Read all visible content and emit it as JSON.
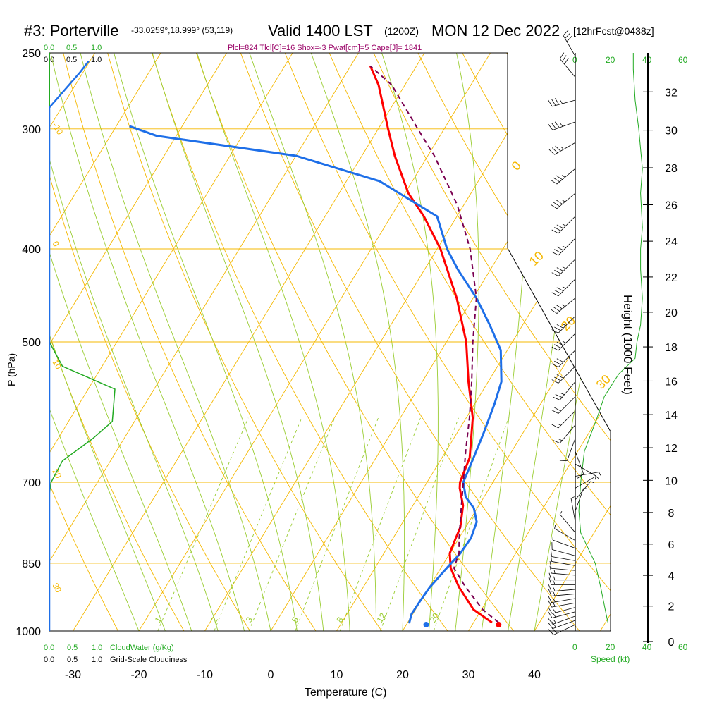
{
  "header": {
    "station": "#3: Porterville",
    "coords": "-33.0259°,18.999° (53,119)",
    "valid": "Valid 1400 LST",
    "utc": "(1200Z)",
    "date": "MON 12 Dec 2022",
    "forecast": "[12hrFcst@0438z]",
    "params": "Plcl=824 Tlcl[C]=16 Shox=-3 Pwat[cm]=5 Cape[J]= 1841"
  },
  "axes": {
    "ylabel": "P (hPa)",
    "xlabel": "Temperature (C)",
    "height_label": "Height (1000 Feet)",
    "speed_label": "Speed (kt)"
  },
  "legend": {
    "cloudwater_label": "CloudWater (g/Kg)",
    "cloudiness_label": "Grid-Scale Cloudiness",
    "scale_top_green": [
      "0.0",
      "0.5",
      "1.0"
    ],
    "scale_top_black": [
      "0.0",
      "0.5",
      "1.0"
    ],
    "scale_bottom_green": [
      "0.0",
      "0.5",
      "1.0"
    ],
    "scale_bottom_black": [
      "0.0",
      "0.5",
      "1.0"
    ]
  },
  "speed_scale": {
    "inner": [
      "0",
      "20",
      "40"
    ],
    "outer": [
      "60"
    ]
  },
  "colors": {
    "isotherm": "#f5b800",
    "dry_adiabat": "#f5b800",
    "moist_adiabat": "#9acd32",
    "mixing_ratio": "#9acd32",
    "temperature": "#ff0000",
    "dewpoint": "#1e6fe8",
    "parcel": "#7a0050",
    "cloudwater": "#22aa22",
    "cloudiness": "#1e6fe8",
    "wind": "#000000",
    "green_text": "#22aa22",
    "param_text": "#990066"
  },
  "chart_data": {
    "type": "line",
    "title": "Valid 1400 LST (1200Z) MON 12 Dec 2022",
    "xlabel": "Temperature (C)",
    "ylabel": "P (hPa)",
    "y_log_scale": true,
    "skewed_x": true,
    "xlim": [
      -35,
      45
    ],
    "ylim": [
      1000,
      250
    ],
    "pressure_ticks": [
      250,
      300,
      400,
      500,
      700,
      850,
      1000
    ],
    "pressure_tick_labels": [
      "250",
      "300",
      "400",
      "500",
      "700",
      "850",
      "1000"
    ],
    "temp_ticks": [
      -30,
      -20,
      -10,
      0,
      10,
      20,
      30,
      40
    ],
    "temp_tick_labels": [
      "-30",
      "-20",
      "-10",
      "0",
      "10",
      "20",
      "30",
      "40"
    ],
    "height_ticks_kft": [
      0,
      2,
      4,
      6,
      8,
      10,
      12,
      14,
      16,
      18,
      20,
      22,
      24,
      26,
      28,
      30,
      32
    ],
    "height_tick_labels": [
      "0",
      "2",
      "4",
      "6",
      "8",
      "10",
      "12",
      "14",
      "16",
      "18",
      "20",
      "22",
      "24",
      "26",
      "28",
      "30",
      "32"
    ],
    "mixing_ratio_labels": [
      "1",
      "2",
      "3",
      "5",
      "8",
      "12",
      "20"
    ],
    "mixing_ratio_values": [
      1,
      2,
      3,
      5,
      8,
      12,
      20
    ],
    "moist_adiabat_labels": [
      "0",
      "10",
      "20",
      "30"
    ],
    "dry_adiabat_labels": [
      "-10",
      "0",
      "10",
      "20",
      "30"
    ],
    "series": [
      {
        "name": "Temperature",
        "points": [
          [
            980,
            32.8
          ],
          [
            950,
            28.8
          ],
          [
            900,
            24.5
          ],
          [
            860,
            21.5
          ],
          [
            830,
            20.0
          ],
          [
            800,
            19.5
          ],
          [
            780,
            19.2
          ],
          [
            740,
            17.6
          ],
          [
            710,
            15.5
          ],
          [
            700,
            15.0
          ],
          [
            660,
            14.2
          ],
          [
            600,
            11.0
          ],
          [
            550,
            7.0
          ],
          [
            500,
            3.0
          ],
          [
            450,
            -2.5
          ],
          [
            400,
            -9.5
          ],
          [
            370,
            -15.0
          ],
          [
            350,
            -19.5
          ],
          [
            320,
            -25.0
          ],
          [
            300,
            -28.5
          ],
          [
            270,
            -34.0
          ],
          [
            258,
            -37.0
          ]
        ]
      },
      {
        "name": "Dewpoint",
        "points": [
          [
            982,
            20.3
          ],
          [
            960,
            19.8
          ],
          [
            930,
            19.9
          ],
          [
            900,
            20.1
          ],
          [
            860,
            20.9
          ],
          [
            830,
            21.6
          ],
          [
            800,
            21.8
          ],
          [
            770,
            21.2
          ],
          [
            745,
            19.5
          ],
          [
            725,
            17.2
          ],
          [
            700,
            15.5
          ],
          [
            660,
            14.8
          ],
          [
            620,
            14.0
          ],
          [
            580,
            13.0
          ],
          [
            550,
            12.0
          ],
          [
            510,
            9.0
          ],
          [
            480,
            5.0
          ],
          [
            450,
            0.5
          ],
          [
            420,
            -5.0
          ],
          [
            400,
            -8.5
          ],
          [
            370,
            -13.0
          ],
          [
            340,
            -25.0
          ],
          [
            320,
            -40.0
          ],
          [
            305,
            -63.0
          ],
          [
            298,
            -68.0
          ]
        ]
      },
      {
        "name": "Parcel",
        "points": [
          [
            980,
            33.8
          ],
          [
            950,
            30.2
          ],
          [
            900,
            25.5
          ],
          [
            860,
            22.0
          ],
          [
            830,
            21.4
          ],
          [
            800,
            20.0
          ],
          [
            750,
            17.8
          ],
          [
            700,
            15.5
          ],
          [
            650,
            13.0
          ],
          [
            600,
            10.5
          ],
          [
            550,
            7.5
          ],
          [
            500,
            4.0
          ],
          [
            450,
            0.5
          ],
          [
            400,
            -5.0
          ],
          [
            360,
            -11.0
          ],
          [
            320,
            -19.0
          ],
          [
            300,
            -24.0
          ],
          [
            270,
            -32.0
          ],
          [
            258,
            -37.0
          ]
        ]
      }
    ],
    "surface_temperature": 34.0,
    "surface_dewpoint": 23.0,
    "cloudwater_profile": [
      [
        1000,
        0.0
      ],
      [
        720,
        0.0
      ],
      [
        700,
        0.02
      ],
      [
        665,
        0.15
      ],
      [
        630,
        0.5
      ],
      [
        605,
        0.72
      ],
      [
        560,
        0.75
      ],
      [
        530,
        0.15
      ],
      [
        500,
        0.0
      ],
      [
        250,
        0.0
      ]
    ],
    "cloudiness_profile": [
      [
        1000,
        0.0
      ],
      [
        298,
        0.0
      ],
      [
        285,
        0.0
      ],
      [
        262,
        0.7
      ],
      [
        255,
        0.9
      ]
    ],
    "wind_speed_profile_kt": [
      [
        980,
        18
      ],
      [
        960,
        17
      ],
      [
        900,
        14
      ],
      [
        850,
        11
      ],
      [
        790,
        3
      ],
      [
        750,
        2
      ],
      [
        700,
        3
      ],
      [
        650,
        5
      ],
      [
        600,
        12
      ],
      [
        570,
        16
      ],
      [
        540,
        24
      ],
      [
        520,
        33
      ],
      [
        500,
        34
      ],
      [
        480,
        36
      ],
      [
        450,
        37
      ],
      [
        420,
        36
      ],
      [
        400,
        36
      ],
      [
        380,
        37
      ],
      [
        350,
        36
      ],
      [
        330,
        37
      ],
      [
        300,
        35
      ],
      [
        280,
        33
      ],
      [
        260,
        32
      ],
      [
        250,
        32
      ]
    ],
    "wind_barbs": [
      {
        "p": 985,
        "dir": 245,
        "kt": 18
      },
      {
        "p": 975,
        "dir": 250,
        "kt": 18
      },
      {
        "p": 965,
        "dir": 250,
        "kt": 17
      },
      {
        "p": 955,
        "dir": 255,
        "kt": 17
      },
      {
        "p": 945,
        "dir": 255,
        "kt": 16
      },
      {
        "p": 935,
        "dir": 260,
        "kt": 16
      },
      {
        "p": 925,
        "dir": 260,
        "kt": 15
      },
      {
        "p": 915,
        "dir": 265,
        "kt": 15
      },
      {
        "p": 905,
        "dir": 265,
        "kt": 14
      },
      {
        "p": 895,
        "dir": 270,
        "kt": 14
      },
      {
        "p": 885,
        "dir": 270,
        "kt": 13
      },
      {
        "p": 875,
        "dir": 275,
        "kt": 13
      },
      {
        "p": 865,
        "dir": 275,
        "kt": 12
      },
      {
        "p": 855,
        "dir": 280,
        "kt": 11
      },
      {
        "p": 845,
        "dir": 280,
        "kt": 10
      },
      {
        "p": 835,
        "dir": 285,
        "kt": 9
      },
      {
        "p": 820,
        "dir": 290,
        "kt": 7
      },
      {
        "p": 805,
        "dir": 300,
        "kt": 5
      },
      {
        "p": 790,
        "dir": 320,
        "kt": 4
      },
      {
        "p": 770,
        "dir": 350,
        "kt": 3
      },
      {
        "p": 750,
        "dir": 20,
        "kt": 3
      },
      {
        "p": 730,
        "dir": 40,
        "kt": 3
      },
      {
        "p": 710,
        "dir": 60,
        "kt": 4
      },
      {
        "p": 690,
        "dir": 80,
        "kt": 5
      },
      {
        "p": 670,
        "dir": 120,
        "kt": 6
      },
      {
        "p": 650,
        "dir": 160,
        "kt": 8
      },
      {
        "p": 630,
        "dir": 200,
        "kt": 11
      },
      {
        "p": 610,
        "dir": 220,
        "kt": 14
      },
      {
        "p": 590,
        "dir": 225,
        "kt": 17
      },
      {
        "p": 570,
        "dir": 225,
        "kt": 20
      },
      {
        "p": 550,
        "dir": 220,
        "kt": 24
      },
      {
        "p": 530,
        "dir": 225,
        "kt": 28
      },
      {
        "p": 510,
        "dir": 225,
        "kt": 32
      },
      {
        "p": 490,
        "dir": 225,
        "kt": 35
      },
      {
        "p": 470,
        "dir": 225,
        "kt": 35
      },
      {
        "p": 450,
        "dir": 230,
        "kt": 36
      },
      {
        "p": 430,
        "dir": 225,
        "kt": 36
      },
      {
        "p": 410,
        "dir": 225,
        "kt": 36
      },
      {
        "p": 390,
        "dir": 225,
        "kt": 36
      },
      {
        "p": 370,
        "dir": 225,
        "kt": 36
      },
      {
        "p": 350,
        "dir": 230,
        "kt": 36
      },
      {
        "p": 330,
        "dir": 230,
        "kt": 36
      },
      {
        "p": 310,
        "dir": 240,
        "kt": 35
      },
      {
        "p": 295,
        "dir": 250,
        "kt": 34
      },
      {
        "p": 280,
        "dir": 255,
        "kt": 33
      },
      {
        "p": 265,
        "dir": 320,
        "kt": 32
      },
      {
        "p": 252,
        "dir": 330,
        "kt": 32
      }
    ]
  }
}
